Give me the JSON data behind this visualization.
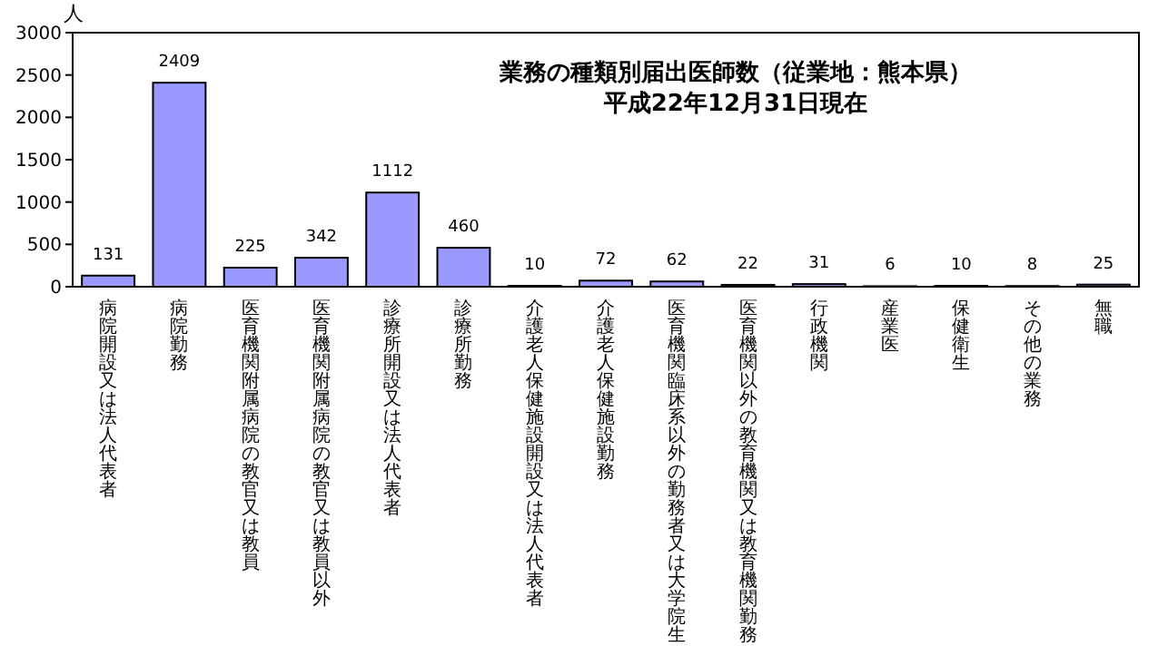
{
  "chart_data": {
    "type": "bar",
    "title": "業務の種類別届出医師数（従業地：熊本県）",
    "subtitle": "平成22年12月31日現在",
    "ylabel": "人",
    "categories": [
      "病院開設又は法人代表者",
      "病院勤務",
      "医育機関附属病院の教官又は教員",
      "医育機関附属病院の教官又は教員以外",
      "診療所開設又は法人代表者",
      "診療所勤務",
      "介護老人保健施設開設又は法人代表者",
      "介護老人保健施設勤務",
      "医育機関臨床系以外の勤務者又は大学院生",
      "医育機関以外の教育機関又は教育機関勤務",
      "行政機関",
      "産業医",
      "保健衛生",
      "その他の業務",
      "無職"
    ],
    "values": [
      131,
      2409,
      225,
      342,
      1112,
      460,
      10,
      72,
      62,
      22,
      31,
      6,
      10,
      8,
      25
    ],
    "color": "#9999ff",
    "data_labels": true,
    "ylim": [
      0,
      3000
    ],
    "yticks": [
      0,
      500,
      1000,
      1500,
      2000,
      2500,
      3000
    ],
    "grid": false
  }
}
